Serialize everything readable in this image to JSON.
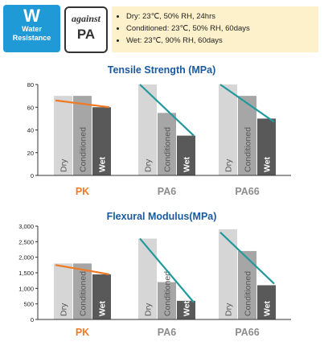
{
  "header": {
    "badge_symbol": "W",
    "badge_label_1": "Water",
    "badge_label_2": "Resistance",
    "against_label": "against",
    "against_material": "PA",
    "conditions": [
      "Dry:            23℃, 50% RH, 24hrs",
      "Conditioned:  23℃, 50% RH, 60days",
      "Wet:            23℃, 90% RH, 60days"
    ]
  },
  "colors": {
    "title": "#1a5aa0",
    "dry": "#d6d6d6",
    "conditioned": "#a6a6a6",
    "wet": "#595959",
    "pk_line": "#f07a24",
    "pa_line": "#22999c",
    "pk_label": "#f07a24",
    "pa_label": "#8c8c8c"
  },
  "chart_data": [
    {
      "type": "bar",
      "title": "Tensile Strength (MPa)",
      "ylim": [
        0,
        80
      ],
      "yticks": [
        "0",
        "20",
        "40",
        "60",
        "80"
      ],
      "materials": [
        "PK",
        "PA6",
        "PA66"
      ],
      "bar_labels": [
        "Dry",
        "Conditioned",
        "Wet"
      ],
      "series": [
        {
          "name": "Dry",
          "values": [
            70,
            80,
            80
          ]
        },
        {
          "name": "Conditioned",
          "values": [
            70,
            55,
            70
          ]
        },
        {
          "name": "Wet",
          "values": [
            60,
            35,
            50
          ]
        }
      ],
      "trend": [
        [
          66,
          60
        ],
        [
          80,
          35
        ],
        [
          80,
          47
        ]
      ]
    },
    {
      "type": "bar",
      "title": "Flexural Modulus(MPa)",
      "ylim": [
        0,
        3000
      ],
      "yticks": [
        "0",
        "500",
        "1,000",
        "1,500",
        "2,000",
        "2,500",
        "3,000"
      ],
      "materials": [
        "PK",
        "PA6",
        "PA66"
      ],
      "bar_labels": [
        "Dry",
        "Conditioned",
        "Wet"
      ],
      "series": [
        {
          "name": "Dry",
          "values": [
            1800,
            2600,
            2900
          ]
        },
        {
          "name": "Conditioned",
          "values": [
            1800,
            1200,
            2200
          ]
        },
        {
          "name": "Wet",
          "values": [
            1450,
            600,
            1100
          ]
        }
      ],
      "trend": [
        [
          1750,
          1450
        ],
        [
          2600,
          550
        ],
        [
          2800,
          1150
        ]
      ]
    }
  ]
}
